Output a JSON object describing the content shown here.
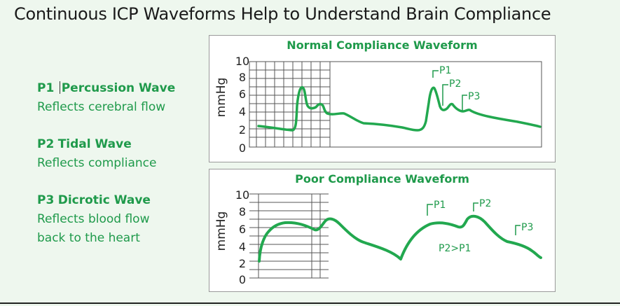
{
  "title": "Continuous ICP Waveforms Help to Understand Brain Compliance",
  "legend": [
    {
      "name": "P1",
      "label": "Percussion Wave",
      "desc": [
        "Reflects cerebral flow"
      ]
    },
    {
      "name": "P2",
      "label": "Tidal Wave",
      "desc": [
        "Reflects compliance"
      ]
    },
    {
      "name": "P3",
      "label": "Dicrotic Wave",
      "desc": [
        "Reflects blood flow",
        "back to the heart"
      ]
    }
  ],
  "panels": {
    "normal": {
      "title": "Normal Compliance Waveform",
      "ylabel": "mmHg",
      "yticks": [
        "0",
        "2",
        "4",
        "6",
        "8",
        "10"
      ],
      "peaks": [
        "P1",
        "P2",
        "P3"
      ]
    },
    "poor": {
      "title": "Poor Compliance Waveform",
      "ylabel": "mmHg",
      "yticks": [
        "0",
        "2",
        "4",
        "6",
        "8",
        "10"
      ],
      "peaks": [
        "P1",
        "P2",
        "P3"
      ],
      "note": "P2>P1"
    }
  },
  "colors": {
    "accent": "#1f9a4b",
    "wave": "#22a84f",
    "grid": "#555555"
  }
}
